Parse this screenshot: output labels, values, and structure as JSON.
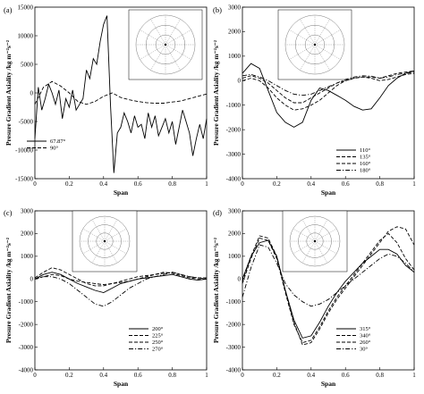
{
  "chart_data": [
    {
      "panel": "(a)",
      "type": "line",
      "xlabel": "Span",
      "ylabel": "Presure Gradient Axiality /kg m⁻²s⁻²",
      "xlim": [
        0,
        1
      ],
      "ylim": [
        -15000,
        15000
      ],
      "xticks": [
        "0",
        "0.2",
        "0.4",
        "0.6",
        "0.8",
        "1"
      ],
      "yticks": [
        "-15000",
        "-10000",
        "-5000",
        "0",
        "5000",
        "10000",
        "15000"
      ],
      "legend_position": "lower-left",
      "series": [
        {
          "name": "67.87°",
          "style": "solid",
          "x": [
            0,
            0.02,
            0.04,
            0.06,
            0.08,
            0.1,
            0.12,
            0.14,
            0.16,
            0.18,
            0.2,
            0.22,
            0.24,
            0.26,
            0.28,
            0.3,
            0.32,
            0.34,
            0.36,
            0.38,
            0.4,
            0.42,
            0.44,
            0.46,
            0.48,
            0.5,
            0.52,
            0.54,
            0.56,
            0.58,
            0.6,
            0.62,
            0.64,
            0.66,
            0.68,
            0.7,
            0.72,
            0.74,
            0.76,
            0.78,
            0.8,
            0.82,
            0.84,
            0.86,
            0.88,
            0.9,
            0.92,
            0.94,
            0.96,
            0.98,
            1.0
          ],
          "y": [
            -8000,
            1000,
            -3000,
            -1000,
            1500,
            0,
            -2000,
            500,
            -4500,
            -1000,
            -2500,
            500,
            -3000,
            -2000,
            -1000,
            4000,
            2500,
            6000,
            5000,
            9000,
            12000,
            13500,
            -2000,
            -14000,
            -7000,
            -6000,
            -3500,
            -5000,
            -7000,
            -4000,
            -6000,
            -5500,
            -8000,
            -3500,
            -6000,
            -4000,
            -7500,
            -6000,
            -4500,
            -7000,
            -5000,
            -9000,
            -6000,
            -3000,
            -5000,
            -7000,
            -11000,
            -8000,
            -5500,
            -8000,
            -4500
          ]
        },
        {
          "name": "90°",
          "style": "dashed",
          "x": [
            0,
            0.05,
            0.1,
            0.15,
            0.2,
            0.25,
            0.3,
            0.35,
            0.4,
            0.45,
            0.5,
            0.55,
            0.6,
            0.65,
            0.7,
            0.75,
            0.8,
            0.85,
            0.9,
            0.95,
            1.0
          ],
          "y": [
            -2000,
            1000,
            2000,
            1200,
            0,
            -1500,
            -2000,
            -1500,
            -600,
            0,
            -800,
            -1200,
            -1500,
            -1700,
            -1800,
            -1800,
            -1600,
            -1400,
            -1000,
            -600,
            -200
          ]
        }
      ]
    },
    {
      "panel": "(b)",
      "type": "line",
      "xlabel": "Span",
      "ylabel": "Presure Gradient Axiality /kg m⁻²s⁻²",
      "xlim": [
        0,
        1
      ],
      "ylim": [
        -4000,
        3000
      ],
      "xticks": [
        "0",
        "0.2",
        "0.4",
        "0.6",
        "0.8",
        "1"
      ],
      "yticks": [
        "-4000",
        "-3000",
        "-2000",
        "-1000",
        "0",
        "1000",
        "2000",
        "3000"
      ],
      "legend_position": "lower-right",
      "series": [
        {
          "name": "110°",
          "style": "solid",
          "x": [
            0,
            0.05,
            0.1,
            0.15,
            0.2,
            0.25,
            0.3,
            0.35,
            0.4,
            0.45,
            0.5,
            0.55,
            0.6,
            0.65,
            0.7,
            0.75,
            0.8,
            0.85,
            0.9,
            0.95,
            1.0
          ],
          "y": [
            300,
            700,
            500,
            -400,
            -1300,
            -1700,
            -1900,
            -1700,
            -800,
            -300,
            -400,
            -600,
            -800,
            -1050,
            -1200,
            -1150,
            -700,
            -200,
            100,
            300,
            400
          ]
        },
        {
          "name": "135°",
          "style": "dashed",
          "x": [
            0,
            0.05,
            0.1,
            0.15,
            0.2,
            0.25,
            0.3,
            0.35,
            0.4,
            0.45,
            0.5,
            0.55,
            0.6,
            0.65,
            0.7,
            0.75,
            0.8,
            0.85,
            0.9,
            0.95,
            1.0
          ],
          "y": [
            100,
            200,
            100,
            -100,
            -400,
            -700,
            -900,
            -900,
            -700,
            -500,
            -300,
            -100,
            0,
            100,
            150,
            150,
            100,
            200,
            300,
            350,
            400
          ]
        },
        {
          "name": "160°",
          "style": "dashed",
          "x": [
            0,
            0.05,
            0.1,
            0.15,
            0.2,
            0.25,
            0.3,
            0.35,
            0.4,
            0.45,
            0.5,
            0.55,
            0.6,
            0.65,
            0.7,
            0.75,
            0.8,
            0.85,
            0.9,
            0.95,
            1.0
          ],
          "y": [
            0,
            100,
            0,
            -300,
            -700,
            -1000,
            -1200,
            -1150,
            -1000,
            -800,
            -500,
            -200,
            0,
            100,
            150,
            100,
            0,
            50,
            150,
            250,
            300
          ]
        },
        {
          "name": "180°",
          "style": "dashdot",
          "x": [
            0,
            0.05,
            0.1,
            0.15,
            0.2,
            0.25,
            0.3,
            0.35,
            0.4,
            0.45,
            0.5,
            0.55,
            0.6,
            0.65,
            0.7,
            0.75,
            0.8,
            0.85,
            0.9,
            0.95,
            1.0
          ],
          "y": [
            200,
            250,
            150,
            0,
            -200,
            -400,
            -550,
            -600,
            -550,
            -400,
            -250,
            -100,
            50,
            150,
            200,
            180,
            100,
            150,
            250,
            300,
            350
          ]
        }
      ]
    },
    {
      "panel": "(c)",
      "type": "line",
      "xlabel": "Span",
      "ylabel": "Presure Gradient Axiality /kg m⁻²s⁻²",
      "xlim": [
        0,
        1
      ],
      "ylim": [
        -4000,
        3000
      ],
      "xticks": [
        "0",
        "0.2",
        "0.4",
        "0.6",
        "0.8",
        "1"
      ],
      "yticks": [
        "-4000",
        "-3000",
        "-2000",
        "-1000",
        "0",
        "1000",
        "2000",
        "3000"
      ],
      "legend_position": "lower-right",
      "series": [
        {
          "name": "200°",
          "style": "solid",
          "x": [
            0,
            0.05,
            0.1,
            0.15,
            0.2,
            0.25,
            0.3,
            0.35,
            0.4,
            0.45,
            0.5,
            0.55,
            0.6,
            0.65,
            0.7,
            0.75,
            0.8,
            0.85,
            0.9,
            0.95,
            1.0
          ],
          "y": [
            0,
            200,
            300,
            200,
            0,
            -200,
            -350,
            -500,
            -600,
            -400,
            -200,
            -100,
            0,
            50,
            100,
            150,
            200,
            100,
            0,
            -50,
            0
          ]
        },
        {
          "name": "225°",
          "style": "dashed",
          "x": [
            0,
            0.05,
            0.1,
            0.15,
            0.2,
            0.25,
            0.3,
            0.35,
            0.4,
            0.45,
            0.5,
            0.55,
            0.6,
            0.65,
            0.7,
            0.75,
            0.8,
            0.85,
            0.9,
            0.95,
            1.0
          ],
          "y": [
            50,
            300,
            500,
            400,
            200,
            0,
            -200,
            -300,
            -300,
            -200,
            -100,
            0,
            100,
            150,
            200,
            250,
            300,
            200,
            100,
            50,
            50
          ]
        },
        {
          "name": "250°",
          "style": "dashed",
          "x": [
            0,
            0.05,
            0.1,
            0.15,
            0.2,
            0.25,
            0.3,
            0.35,
            0.4,
            0.45,
            0.5,
            0.55,
            0.6,
            0.65,
            0.7,
            0.75,
            0.8,
            0.85,
            0.9,
            0.95,
            1.0
          ],
          "y": [
            0,
            100,
            200,
            150,
            0,
            -100,
            -150,
            -200,
            -250,
            -200,
            -150,
            -100,
            0,
            100,
            200,
            300,
            250,
            150,
            50,
            0,
            0
          ]
        },
        {
          "name": "270°",
          "style": "dashdot",
          "x": [
            0,
            0.05,
            0.1,
            0.15,
            0.2,
            0.25,
            0.3,
            0.35,
            0.4,
            0.45,
            0.5,
            0.55,
            0.6,
            0.65,
            0.7,
            0.75,
            0.8,
            0.85,
            0.9,
            0.95,
            1.0
          ],
          "y": [
            0,
            100,
            100,
            0,
            -200,
            -500,
            -800,
            -1100,
            -1200,
            -1000,
            -700,
            -400,
            -200,
            0,
            100,
            200,
            300,
            200,
            100,
            50,
            0
          ]
        }
      ]
    },
    {
      "panel": "(d)",
      "type": "line",
      "xlabel": "Span",
      "ylabel": "Presure Gradient Axiality /kg m⁻²s⁻²",
      "xlim": [
        0,
        1
      ],
      "ylim": [
        -4000,
        3000
      ],
      "xticks": [
        "0",
        "0.2",
        "0.4",
        "0.6",
        "0.8",
        "1"
      ],
      "yticks": [
        "-4000",
        "-3000",
        "-2000",
        "-1000",
        "0",
        "1000",
        "2000",
        "3000"
      ],
      "legend_position": "lower-right",
      "series": [
        {
          "name": "315°",
          "style": "solid",
          "x": [
            0,
            0.05,
            0.1,
            0.15,
            0.2,
            0.25,
            0.3,
            0.35,
            0.4,
            0.45,
            0.5,
            0.55,
            0.6,
            0.65,
            0.7,
            0.75,
            0.8,
            0.85,
            0.9,
            0.95,
            1.0
          ],
          "y": [
            0,
            1000,
            1600,
            1700,
            1000,
            -500,
            -1800,
            -2600,
            -2500,
            -1900,
            -1200,
            -600,
            -100,
            300,
            700,
            1000,
            1300,
            1300,
            1100,
            600,
            300
          ]
        },
        {
          "name": "340°",
          "style": "dashed",
          "x": [
            0,
            0.05,
            0.1,
            0.15,
            0.2,
            0.25,
            0.3,
            0.35,
            0.4,
            0.45,
            0.5,
            0.55,
            0.6,
            0.65,
            0.7,
            0.75,
            0.8,
            0.85,
            0.9,
            0.95,
            1.0
          ],
          "y": [
            -200,
            900,
            1800,
            1700,
            900,
            -600,
            -2000,
            -2800,
            -2700,
            -2100,
            -1400,
            -800,
            -300,
            200,
            700,
            1200,
            1700,
            2000,
            1600,
            900,
            400
          ]
        },
        {
          "name": "260°",
          "style": "dashed",
          "x": [
            0,
            0.05,
            0.1,
            0.15,
            0.2,
            0.25,
            0.3,
            0.35,
            0.4,
            0.45,
            0.5,
            0.55,
            0.6,
            0.65,
            0.7,
            0.75,
            0.8,
            0.85,
            0.9,
            0.95,
            1.0
          ],
          "y": [
            -100,
            1000,
            1900,
            1800,
            1000,
            -500,
            -1900,
            -2900,
            -2800,
            -2200,
            -1500,
            -900,
            -400,
            100,
            600,
            1100,
            1600,
            2100,
            2300,
            2200,
            1500
          ]
        },
        {
          "name": "30°",
          "style": "dashdot",
          "x": [
            0,
            0.05,
            0.1,
            0.15,
            0.2,
            0.25,
            0.3,
            0.35,
            0.4,
            0.45,
            0.5,
            0.55,
            0.6,
            0.65,
            0.7,
            0.75,
            0.8,
            0.85,
            0.9,
            0.95,
            1.0
          ],
          "y": [
            -800,
            500,
            1500,
            1400,
            700,
            -200,
            -700,
            -1000,
            -1200,
            -1100,
            -900,
            -600,
            -300,
            0,
            300,
            600,
            900,
            1100,
            1000,
            700,
            300
          ]
        }
      ]
    }
  ]
}
